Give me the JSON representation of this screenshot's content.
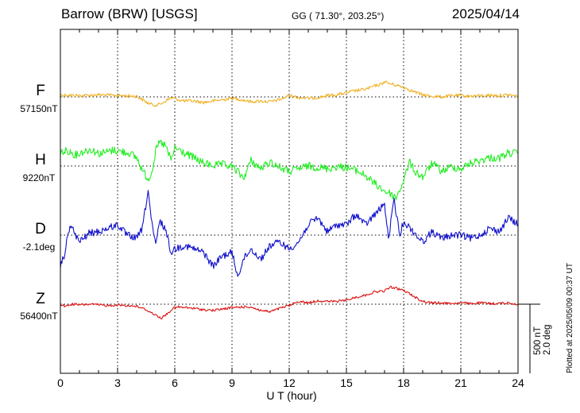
{
  "header": {
    "station": "Barrow (BRW)  [USGS]",
    "coords": "GG ( 71.30°, 203.25°)",
    "date": "2025/04/14"
  },
  "footer": {
    "plotted": "Plotted at 2025/05/09 00:37 UT"
  },
  "scale_bar": {
    "nt_label": "500 nT",
    "deg_label": "2.0 deg",
    "nt_value": 500,
    "deg_value": 2.0
  },
  "colors": {
    "F": "#f0b020",
    "H": "#22ee22",
    "D": "#1111cc",
    "Z": "#dd1111",
    "axis": "#000000"
  },
  "chart_data": {
    "type": "line",
    "title": "",
    "xlabel": "U T (hour)",
    "ylabel": "",
    "xlim": [
      0,
      24
    ],
    "xticks": [
      "0",
      "3",
      "6",
      "9",
      "12",
      "15",
      "18",
      "21",
      "24"
    ],
    "grid": true,
    "y_unit_note": "values are deviations from each channel's baseline; nT for F, H, Z and deg for D",
    "series": [
      {
        "name": "F",
        "baseline_label": "57150nT",
        "unit": "nT",
        "x": [
          0,
          0.5,
          1,
          1.5,
          2,
          2.5,
          3,
          3.5,
          4,
          4.3,
          4.6,
          4.9,
          5.2,
          5.5,
          5.8,
          6,
          6.3,
          6.6,
          7,
          7.5,
          8,
          8.5,
          9,
          9.5,
          10,
          10.5,
          11,
          11.5,
          12,
          12.5,
          13,
          13.5,
          14,
          14.5,
          15,
          15.5,
          16,
          16.5,
          16.8,
          17,
          17.3,
          17.6,
          18,
          18.5,
          19,
          19.5,
          20,
          20.5,
          21,
          21.5,
          22,
          22.5,
          23,
          23.5,
          24
        ],
        "y": [
          15,
          12,
          10,
          12,
          15,
          12,
          10,
          8,
          5,
          -20,
          -45,
          -60,
          -55,
          -30,
          -8,
          -10,
          -25,
          -30,
          -30,
          -40,
          -30,
          -20,
          -10,
          -20,
          -35,
          -30,
          -35,
          -20,
          10,
          -5,
          -10,
          -5,
          10,
          15,
          30,
          45,
          55,
          80,
          90,
          110,
          95,
          85,
          70,
          40,
          15,
          5,
          0,
          8,
          10,
          5,
          8,
          12,
          10,
          15,
          5
        ]
      },
      {
        "name": "H",
        "baseline_label": "9220nT",
        "unit": "nT",
        "x": [
          0,
          0.4,
          0.8,
          1.2,
          1.6,
          2,
          2.4,
          2.8,
          3.2,
          3.6,
          4,
          4.3,
          4.6,
          4.8,
          5,
          5.2,
          5.5,
          5.8,
          6,
          6.3,
          6.6,
          7,
          7.5,
          8,
          8.5,
          9,
          9.3,
          9.6,
          10,
          10.5,
          11,
          11.5,
          12,
          12.5,
          13,
          13.5,
          14,
          14.5,
          15,
          15.5,
          16,
          16.5,
          17,
          17.3,
          17.6,
          18,
          18.3,
          18.6,
          19,
          19.5,
          20,
          20.5,
          21,
          21.5,
          22,
          22.5,
          23,
          23.5,
          24
        ],
        "y": [
          95,
          110,
          80,
          105,
          120,
          90,
          100,
          115,
          105,
          95,
          60,
          -30,
          -95,
          -40,
          110,
          170,
          150,
          40,
          130,
          110,
          85,
          60,
          20,
          5,
          10,
          -5,
          -40,
          -90,
          40,
          -20,
          30,
          -10,
          -40,
          -20,
          0,
          -10,
          -20,
          -5,
          -10,
          -30,
          -70,
          -130,
          -180,
          -200,
          -230,
          -110,
          30,
          -40,
          -80,
          20,
          -40,
          -5,
          -20,
          20,
          40,
          60,
          55,
          95,
          90
        ]
      },
      {
        "name": "D",
        "baseline_label": "-2.1deg",
        "unit": "deg",
        "x": [
          0,
          0.2,
          0.5,
          1,
          1.5,
          2,
          2.5,
          3,
          3.5,
          4,
          4.3,
          4.6,
          4.8,
          5,
          5.2,
          5.5,
          5.8,
          6,
          6.5,
          7,
          7.5,
          8,
          8.5,
          9,
          9.3,
          9.6,
          10,
          10.5,
          11,
          11.5,
          12,
          12.5,
          13,
          13.5,
          14,
          14.5,
          15,
          15.5,
          16,
          16.5,
          17,
          17.2,
          17.5,
          17.8,
          18,
          18.5,
          19,
          19.5,
          20,
          20.5,
          21,
          21.5,
          22,
          22.5,
          23,
          23.5,
          24
        ],
        "y": [
          -0.9,
          -0.6,
          0.3,
          -0.2,
          0.05,
          0.1,
          0.2,
          0.3,
          0.0,
          -0.1,
          0.2,
          1.3,
          0.3,
          -0.3,
          0.4,
          0.2,
          -0.5,
          -0.4,
          -0.3,
          -0.4,
          -0.5,
          -0.9,
          -0.6,
          -0.5,
          -1.2,
          -0.7,
          -0.4,
          -0.7,
          -0.3,
          -0.2,
          -0.4,
          -0.2,
          0.3,
          0.5,
          0.1,
          0.3,
          0.3,
          0.6,
          0.3,
          0.6,
          0.9,
          -0.1,
          1.0,
          0.0,
          0.4,
          0.1,
          -0.2,
          0.1,
          -0.1,
          0.0,
          0.0,
          -0.1,
          0.0,
          0.2,
          0.1,
          0.5,
          0.3
        ]
      },
      {
        "name": "Z",
        "baseline_label": "56400nT",
        "unit": "nT",
        "x": [
          0,
          0.3,
          0.6,
          1,
          1.5,
          2,
          2.5,
          3,
          3.5,
          4,
          4.5,
          5,
          5.3,
          5.6,
          5.9,
          6.2,
          6.5,
          7,
          7.5,
          8,
          8.5,
          9,
          9.5,
          10,
          10.5,
          11,
          11.5,
          12,
          12.5,
          13,
          13.5,
          14,
          14.5,
          15,
          15.5,
          16,
          16.5,
          17,
          17.3,
          17.6,
          18,
          18.5,
          19,
          19.5,
          20,
          20.5,
          21,
          21.5,
          22,
          22.5,
          23,
          23.5,
          24
        ],
        "y": [
          -5,
          -15,
          0,
          -5,
          0,
          -5,
          -10,
          -5,
          -10,
          -15,
          -40,
          -80,
          -100,
          -70,
          -30,
          -20,
          -25,
          -30,
          -40,
          -45,
          -35,
          -25,
          -20,
          -20,
          -45,
          -55,
          -30,
          -10,
          20,
          10,
          25,
          20,
          20,
          30,
          50,
          65,
          90,
          95,
          125,
          115,
          100,
          60,
          20,
          10,
          10,
          5,
          10,
          5,
          10,
          5,
          5,
          10,
          0
        ]
      }
    ]
  }
}
